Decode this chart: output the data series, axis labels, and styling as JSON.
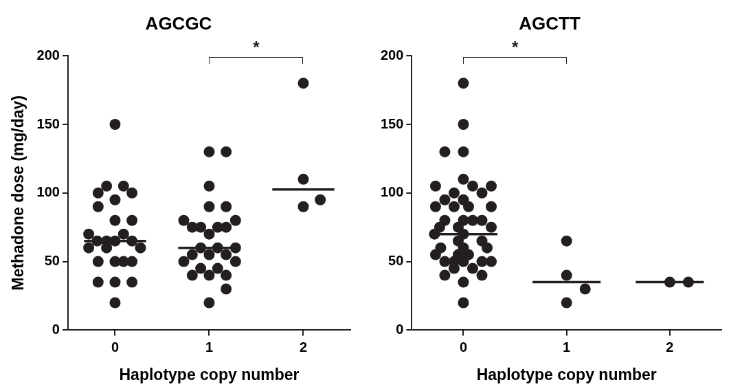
{
  "chart_data": [
    {
      "type": "scatter",
      "title": "AGCGC",
      "xlabel": "Haplotype copy number",
      "ylabel": "Methadone dose (mg/day)",
      "xlim": [
        -0.5,
        2.5
      ],
      "xticks": [
        0,
        1,
        2
      ],
      "ylim": [
        0,
        200
      ],
      "yticks": [
        0,
        50,
        100,
        150,
        200
      ],
      "grid": false,
      "legend": false,
      "marker": "circle",
      "series": [
        {
          "color": "#231f20",
          "x": [
            0,
            -0.09,
            0.09,
            -0.18,
            0.18,
            0,
            -0.18,
            0,
            0.18,
            -0.28,
            0.09,
            -0.19,
            -0.09,
            0,
            0.18,
            -0.28,
            -0.09,
            0.27,
            -0.18,
            0,
            0.09,
            0.18,
            -0.18,
            0,
            0.18,
            0,
            1,
            1.18,
            1,
            1,
            1.18,
            0.73,
            1.28,
            0.82,
            0.91,
            1.09,
            1.18,
            1,
            0.91,
            1.09,
            1.28,
            0.82,
            1,
            1.18,
            0.73,
            1.28,
            0.91,
            1.09,
            0.82,
            1,
            1.18,
            1.18,
            1,
            2,
            2,
            2.18,
            2
          ],
          "values": [
            150,
            105,
            105,
            100,
            100,
            95,
            90,
            80,
            80,
            70,
            70,
            65,
            65,
            65,
            65,
            60,
            60,
            60,
            50,
            50,
            50,
            50,
            35,
            35,
            35,
            20,
            130,
            130,
            105,
            90,
            90,
            80,
            80,
            75,
            75,
            75,
            75,
            70,
            60,
            60,
            60,
            55,
            55,
            55,
            50,
            50,
            45,
            45,
            40,
            40,
            40,
            30,
            20,
            180,
            110,
            95,
            90
          ]
        },
        {
          "type": "line",
          "color": "#231f20",
          "marker": "none",
          "x": [
            -0.33,
            0.33
          ],
          "values": [
            65,
            65
          ]
        },
        {
          "type": "line",
          "color": "#231f20",
          "marker": "none",
          "x": [
            0.67,
            1.33
          ],
          "values": [
            60,
            60
          ]
        },
        {
          "type": "line",
          "color": "#231f20",
          "marker": "none",
          "x": [
            1.67,
            2.33
          ],
          "values": [
            102.5,
            102.5
          ]
        }
      ],
      "annotations": [
        "*"
      ]
    },
    {
      "type": "scatter",
      "title": "AGCTT",
      "xlabel": "Haplotype copy number",
      "xlim": [
        -0.5,
        2.5
      ],
      "xticks": [
        0,
        1,
        2
      ],
      "ylim": [
        0,
        200
      ],
      "yticks": [
        0,
        50,
        100,
        150,
        200
      ],
      "grid": false,
      "legend": false,
      "marker": "circle",
      "series": [
        {
          "color": "#231f20",
          "x": [
            0,
            0,
            -0.18,
            0,
            0,
            -0.27,
            0.09,
            0.27,
            -0.09,
            0.18,
            -0.18,
            0,
            -0.27,
            -0.09,
            0.05,
            0.27,
            -0.18,
            0,
            0.09,
            0.18,
            -0.23,
            -0.05,
            0.27,
            -0.28,
            0,
            -0.05,
            0.18,
            -0.22,
            0,
            0.23,
            -0.27,
            -0.05,
            0.05,
            -0.18,
            -0.09,
            0,
            0.18,
            0.27,
            -0.09,
            0.09,
            -0.18,
            0.18,
            0,
            0,
            1,
            1,
            1.18,
            1,
            2,
            2.18
          ],
          "values": [
            180,
            150,
            130,
            130,
            110,
            105,
            105,
            105,
            100,
            100,
            95,
            95,
            90,
            90,
            90,
            90,
            80,
            80,
            80,
            80,
            75,
            75,
            75,
            70,
            70,
            65,
            65,
            60,
            60,
            60,
            55,
            55,
            55,
            50,
            50,
            50,
            50,
            50,
            45,
            45,
            40,
            40,
            35,
            20,
            65,
            40,
            30,
            20,
            35,
            35
          ]
        },
        {
          "type": "line",
          "color": "#231f20",
          "marker": "none",
          "x": [
            -0.33,
            0.33
          ],
          "values": [
            70,
            70
          ]
        },
        {
          "type": "line",
          "color": "#231f20",
          "marker": "none",
          "x": [
            0.67,
            1.33
          ],
          "values": [
            35,
            35
          ]
        },
        {
          "type": "line",
          "color": "#231f20",
          "marker": "none",
          "x": [
            1.67,
            2.33
          ],
          "values": [
            35,
            35
          ]
        }
      ],
      "annotations": [
        "*"
      ]
    }
  ]
}
